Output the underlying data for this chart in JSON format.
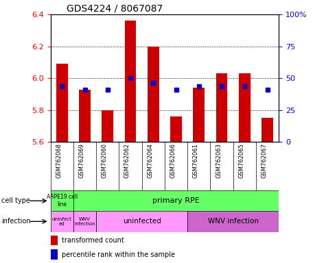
{
  "title": "GDS4224 / 8067087",
  "samples": [
    "GSM762068",
    "GSM762069",
    "GSM762060",
    "GSM762062",
    "GSM762064",
    "GSM762066",
    "GSM762061",
    "GSM762063",
    "GSM762065",
    "GSM762067"
  ],
  "red_values": [
    6.09,
    5.93,
    5.8,
    6.36,
    6.2,
    5.76,
    5.94,
    6.03,
    6.03,
    5.75
  ],
  "blue_values": [
    5.95,
    5.93,
    5.93,
    6.0,
    5.97,
    5.93,
    5.95,
    5.95,
    5.95,
    5.93
  ],
  "ylim_left": [
    5.6,
    6.4
  ],
  "ylim_right": [
    0,
    100
  ],
  "yticks_left": [
    5.6,
    5.8,
    6.0,
    6.2,
    6.4
  ],
  "yticks_right": [
    0,
    25,
    50,
    75,
    100
  ],
  "ytick_labels_right": [
    "0",
    "25",
    "50",
    "75",
    "100%"
  ],
  "bar_color": "#cc0000",
  "dot_color": "#0000cc",
  "green_color": "#66ff66",
  "pink_light": "#ff99ff",
  "pink_dark": "#cc66cc",
  "cell_type_label0": "ARPE19 cell\nline",
  "cell_type_label1": "primary RPE",
  "inf_label0": "uninfect\ned",
  "inf_label1": "WNV\ninfection",
  "inf_label2": "uninfected",
  "inf_label3": "WNV infection",
  "bg_color": "#ffffff",
  "bar_width": 0.5,
  "base_value": 5.6,
  "grid_yticks": [
    5.8,
    6.0,
    6.2
  ]
}
